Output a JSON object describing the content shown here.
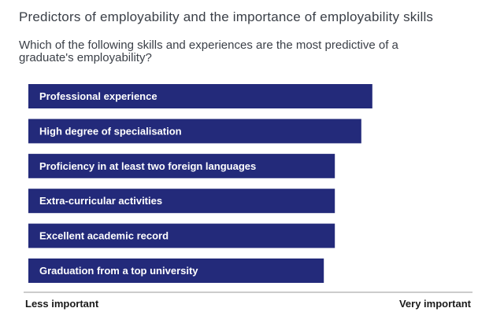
{
  "title": "Predictors of employability and the importance of employability skills",
  "subtitle": "Which of the following skills and experiences are the most predictive of a graduate's employability?",
  "chart_data": {
    "type": "bar",
    "orientation": "horizontal",
    "categories": [
      "Professional experience",
      "High degree of specialisation",
      "Proficiency in at least two foreign languages",
      "Extra-curricular activities",
      "Excellent academic record",
      "Graduation from a top university"
    ],
    "values": [
      78,
      75.5,
      69.5,
      69.5,
      69.5,
      67
    ],
    "xlim": [
      0,
      100
    ],
    "x_min_label": "Less important",
    "x_max_label": "Very important",
    "grid": false,
    "legend": "none",
    "bar_color": "#232a7a",
    "label_color": "#ffffff"
  }
}
